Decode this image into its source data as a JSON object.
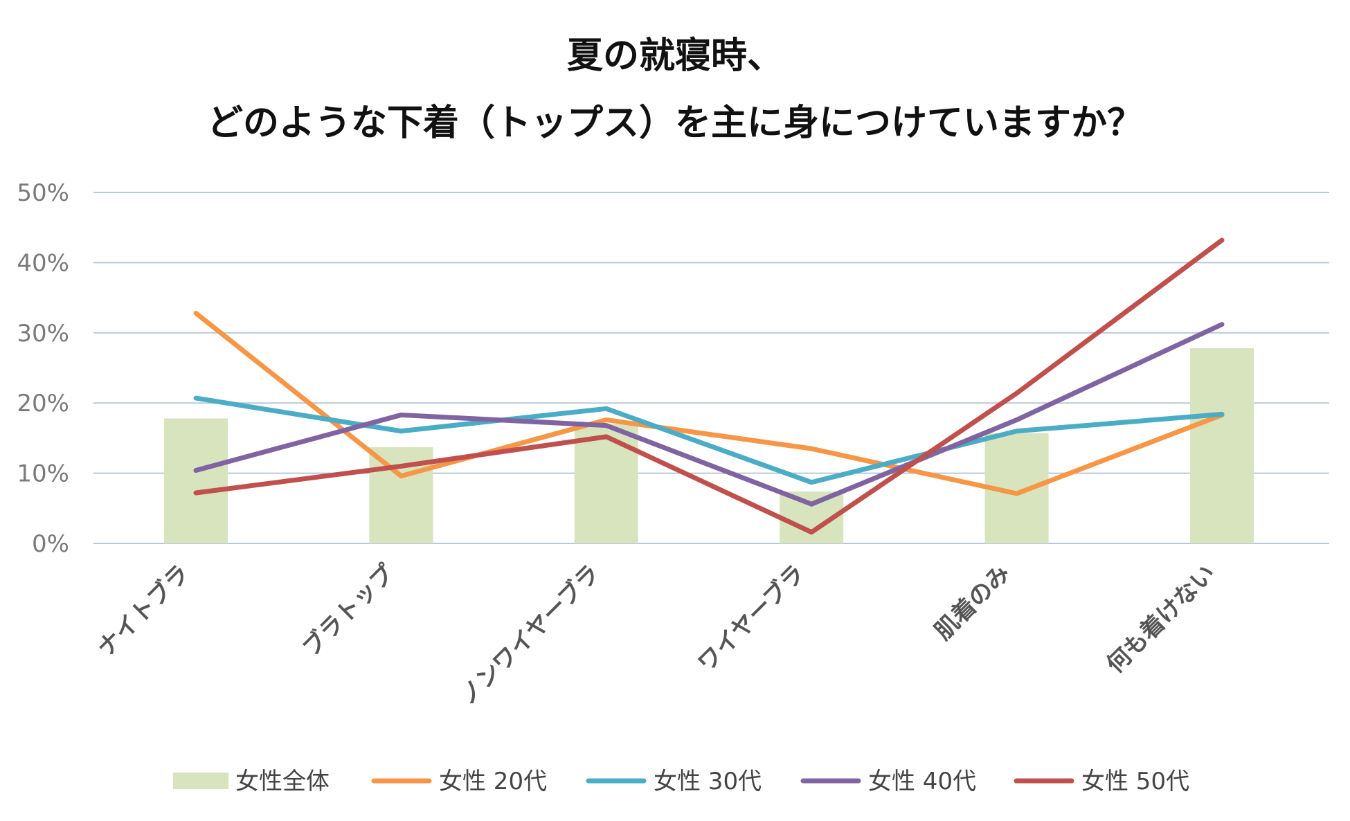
{
  "chart_data": {
    "type": "bar+line",
    "title_lines": [
      "夏の就寝時、",
      "どのような下着（トップス）を主に身につけていますか？"
    ],
    "categories": [
      "ナイトブラ",
      "ブラトップ",
      "ノンワイヤーブラ",
      "ワイヤーブラ",
      "肌着のみ",
      "何も着けない"
    ],
    "ylim": [
      0,
      50
    ],
    "y_ticks": [
      0,
      10,
      20,
      30,
      40,
      50
    ],
    "y_tick_labels": [
      "0%",
      "10%",
      "20%",
      "30%",
      "40%",
      "50%"
    ],
    "grid": true,
    "legend_position": "bottom",
    "bar_series": {
      "name": "女性全体",
      "color": "#d7e4bd",
      "values": [
        17.8,
        13.7,
        17.0,
        7.4,
        15.7,
        27.8
      ]
    },
    "line_series": [
      {
        "name": "女性 20代",
        "color": "#f79646",
        "values": [
          32.8,
          9.6,
          17.6,
          13.5,
          7.1,
          18.3
        ]
      },
      {
        "name": "女性 30代",
        "color": "#4bacc6",
        "values": [
          20.7,
          16.0,
          19.2,
          8.7,
          16.0,
          18.4
        ]
      },
      {
        "name": "女性 40代",
        "color": "#8064a2",
        "values": [
          10.4,
          18.3,
          16.8,
          5.6,
          17.6,
          31.2
        ]
      },
      {
        "name": "女性 50代",
        "color": "#c0504d",
        "values": [
          7.2,
          11.0,
          15.2,
          1.6,
          21.4,
          43.2
        ]
      }
    ]
  }
}
